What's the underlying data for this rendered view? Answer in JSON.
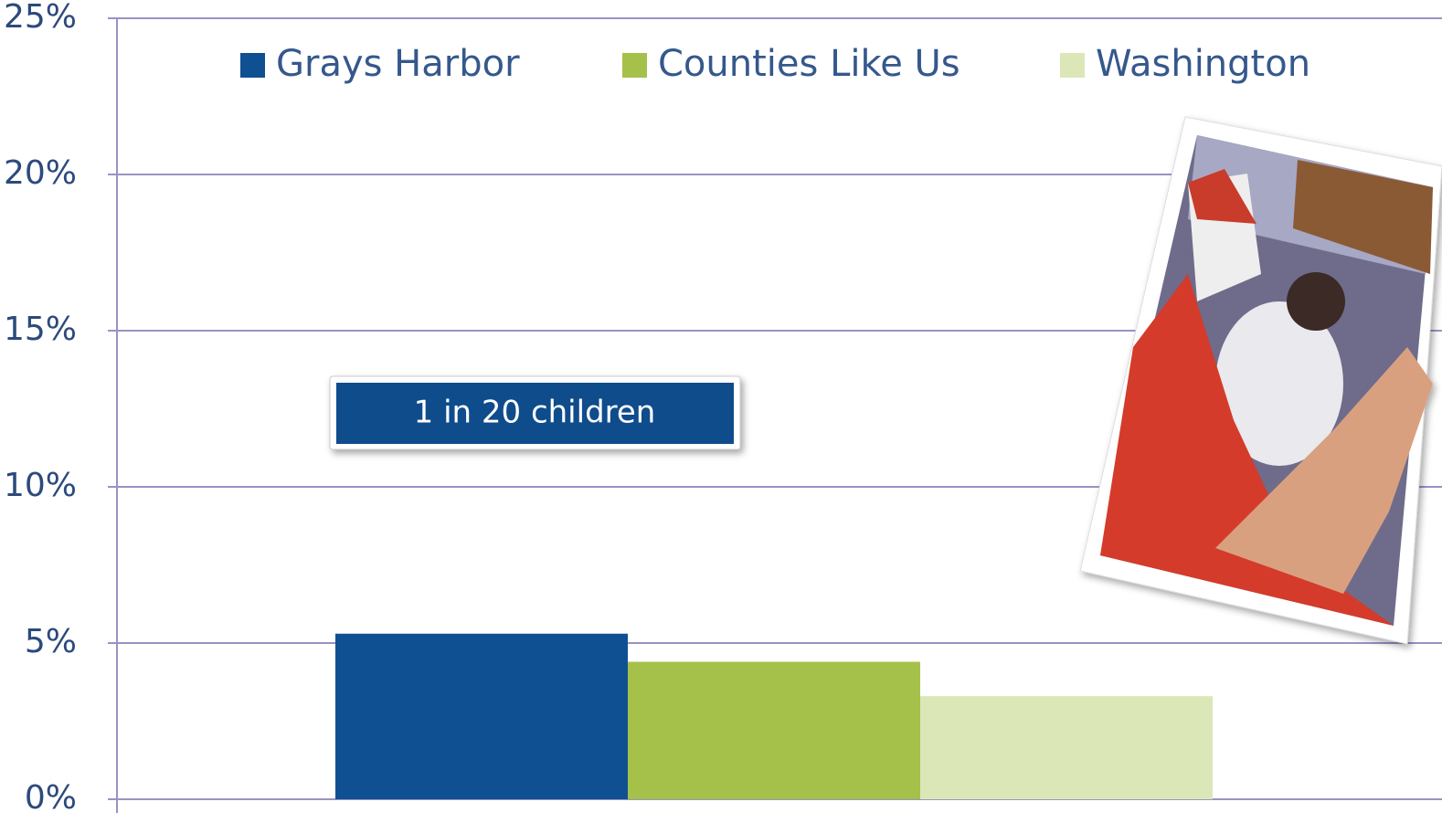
{
  "chart_data": {
    "type": "bar",
    "categories": [
      null
    ],
    "series": [
      {
        "name": "Grays Harbor",
        "color": "#0f5092",
        "values": [
          5.3
        ]
      },
      {
        "name": "Counties Like Us",
        "color": "#a5c14a",
        "values": [
          4.4
        ]
      },
      {
        "name": "Washington",
        "color": "#dce7b8",
        "values": [
          3.3
        ]
      }
    ],
    "ylim": [
      0,
      25
    ],
    "yticks": [
      {
        "value": 0,
        "label": "0%"
      },
      {
        "value": 5,
        "label": "5%"
      },
      {
        "value": 10,
        "label": "10%"
      },
      {
        "value": 15,
        "label": "15%"
      },
      {
        "value": 20,
        "label": "20%"
      },
      {
        "value": 25,
        "label": "25%"
      }
    ],
    "grid": true,
    "annotation": "1 in 20 children"
  }
}
